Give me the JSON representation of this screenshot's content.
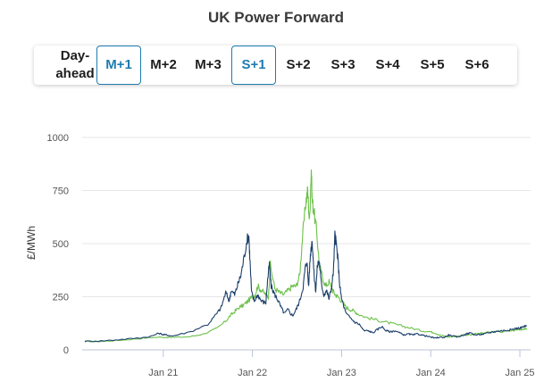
{
  "title": "UK Power Forward",
  "tabs": [
    {
      "label": "Day-ahead",
      "active": false
    },
    {
      "label": "M+1",
      "active": true
    },
    {
      "label": "M+2",
      "active": false
    },
    {
      "label": "M+3",
      "active": false
    },
    {
      "label": "S+1",
      "active": true
    },
    {
      "label": "S+2",
      "active": false
    },
    {
      "label": "S+3",
      "active": false
    },
    {
      "label": "S+4",
      "active": false
    },
    {
      "label": "S+5",
      "active": false
    },
    {
      "label": "S+6",
      "active": false
    }
  ],
  "colors": {
    "series_navy": "#1b3f6b",
    "series_green": "#6cc04a",
    "accent": "#1f7bb0"
  },
  "chart_data": {
    "type": "line",
    "title": "",
    "xlabel": "",
    "ylabel": "£/MWh",
    "ylim": [
      0,
      1000
    ],
    "yticks": [
      0,
      250,
      500,
      750,
      1000
    ],
    "xticks": [
      {
        "label": "Jan 21",
        "year": 2021.0
      },
      {
        "label": "Jan 22",
        "year": 2022.0
      },
      {
        "label": "Jan 23",
        "year": 2023.0
      },
      {
        "label": "Jan 24",
        "year": 2024.0
      },
      {
        "label": "Jan 25",
        "year": 2025.0
      }
    ],
    "xlim": [
      2020.09,
      2025.12
    ],
    "grid": true,
    "series": [
      {
        "color": "#1b3f6b",
        "x": [
          2020.12,
          2020.3,
          2020.5,
          2020.7,
          2020.85,
          2020.95,
          2021.0,
          2021.04,
          2021.1,
          2021.3,
          2021.5,
          2021.6,
          2021.65,
          2021.7,
          2021.74,
          2021.76,
          2021.8,
          2021.83,
          2021.87,
          2021.9,
          2021.94,
          2021.96,
          2021.97,
          2021.99,
          2022.02,
          2022.06,
          2022.1,
          2022.15,
          2022.17,
          2022.19,
          2022.21,
          2022.25,
          2022.28,
          2022.32,
          2022.36,
          2022.4,
          2022.45,
          2022.49,
          2022.53,
          2022.57,
          2022.59,
          2022.61,
          2022.63,
          2022.65,
          2022.67,
          2022.69,
          2022.71,
          2022.73,
          2022.75,
          2022.77,
          2022.8,
          2022.83,
          2022.86,
          2022.89,
          2022.91,
          2022.925,
          2022.94,
          2022.96,
          2022.98,
          2023.0,
          2023.05,
          2023.1,
          2023.15,
          2023.2,
          2023.25,
          2023.3,
          2023.35,
          2023.4,
          2023.45,
          2023.5,
          2023.55,
          2023.6,
          2023.65,
          2023.7,
          2023.75,
          2023.8,
          2023.85,
          2023.9,
          2023.95,
          2024.0,
          2024.05,
          2024.1,
          2024.15,
          2024.2,
          2024.25,
          2024.3,
          2024.35,
          2024.4,
          2024.45,
          2024.5,
          2024.55,
          2024.6,
          2024.65,
          2024.7,
          2024.75,
          2024.8,
          2024.85,
          2024.9,
          2024.95,
          2025.0,
          2025.05,
          2025.08
        ],
        "y": [
          40,
          42,
          48,
          55,
          62,
          78,
          72,
          70,
          65,
          85,
          120,
          170,
          200,
          270,
          230,
          280,
          260,
          300,
          350,
          420,
          520,
          540,
          440,
          270,
          230,
          260,
          230,
          220,
          330,
          400,
          300,
          260,
          240,
          200,
          170,
          190,
          160,
          190,
          230,
          300,
          380,
          420,
          300,
          450,
          520,
          360,
          280,
          400,
          420,
          320,
          260,
          280,
          240,
          300,
          380,
          540,
          500,
          420,
          300,
          240,
          170,
          150,
          130,
          120,
          90,
          90,
          80,
          95,
          110,
          90,
          85,
          90,
          80,
          70,
          75,
          70,
          75,
          70,
          65,
          60,
          55,
          60,
          58,
          70,
          65,
          60,
          68,
          75,
          80,
          70,
          72,
          75,
          80,
          85,
          88,
          90,
          92,
          95,
          100,
          103,
          110,
          112
        ]
      },
      {
        "color": "#6cc04a",
        "x": [
          2020.12,
          2020.3,
          2020.5,
          2020.7,
          2020.85,
          2021.0,
          2021.1,
          2021.3,
          2021.45,
          2021.6,
          2021.7,
          2021.75,
          2021.8,
          2021.85,
          2021.9,
          2021.95,
          2022.0,
          2022.03,
          2022.06,
          2022.1,
          2022.15,
          2022.18,
          2022.2,
          2022.25,
          2022.3,
          2022.35,
          2022.4,
          2022.45,
          2022.49,
          2022.53,
          2022.56,
          2022.6,
          2022.62,
          2022.64,
          2022.66,
          2022.67,
          2022.69,
          2022.72,
          2022.75,
          2022.78,
          2022.82,
          2022.86,
          2022.9,
          2022.93,
          2022.96,
          2023.0,
          2023.05,
          2023.1,
          2023.15,
          2023.2,
          2023.3,
          2023.4,
          2023.5,
          2023.6,
          2023.7,
          2023.8,
          2023.9,
          2024.0,
          2024.05,
          2024.1,
          2024.15,
          2024.2,
          2024.3,
          2024.4,
          2024.5,
          2024.6,
          2024.7,
          2024.8,
          2024.9,
          2025.0,
          2025.05,
          2025.08
        ],
        "y": [
          40,
          40,
          45,
          52,
          58,
          60,
          58,
          62,
          75,
          100,
          135,
          160,
          180,
          200,
          210,
          230,
          250,
          260,
          300,
          280,
          260,
          250,
          400,
          290,
          270,
          260,
          280,
          300,
          300,
          350,
          520,
          700,
          750,
          600,
          860,
          700,
          650,
          560,
          400,
          350,
          300,
          320,
          280,
          260,
          250,
          230,
          200,
          190,
          180,
          165,
          150,
          140,
          130,
          120,
          110,
          100,
          90,
          85,
          80,
          70,
          65,
          60,
          65,
          70,
          75,
          80,
          85,
          85,
          90,
          95,
          100,
          98
        ]
      }
    ]
  }
}
